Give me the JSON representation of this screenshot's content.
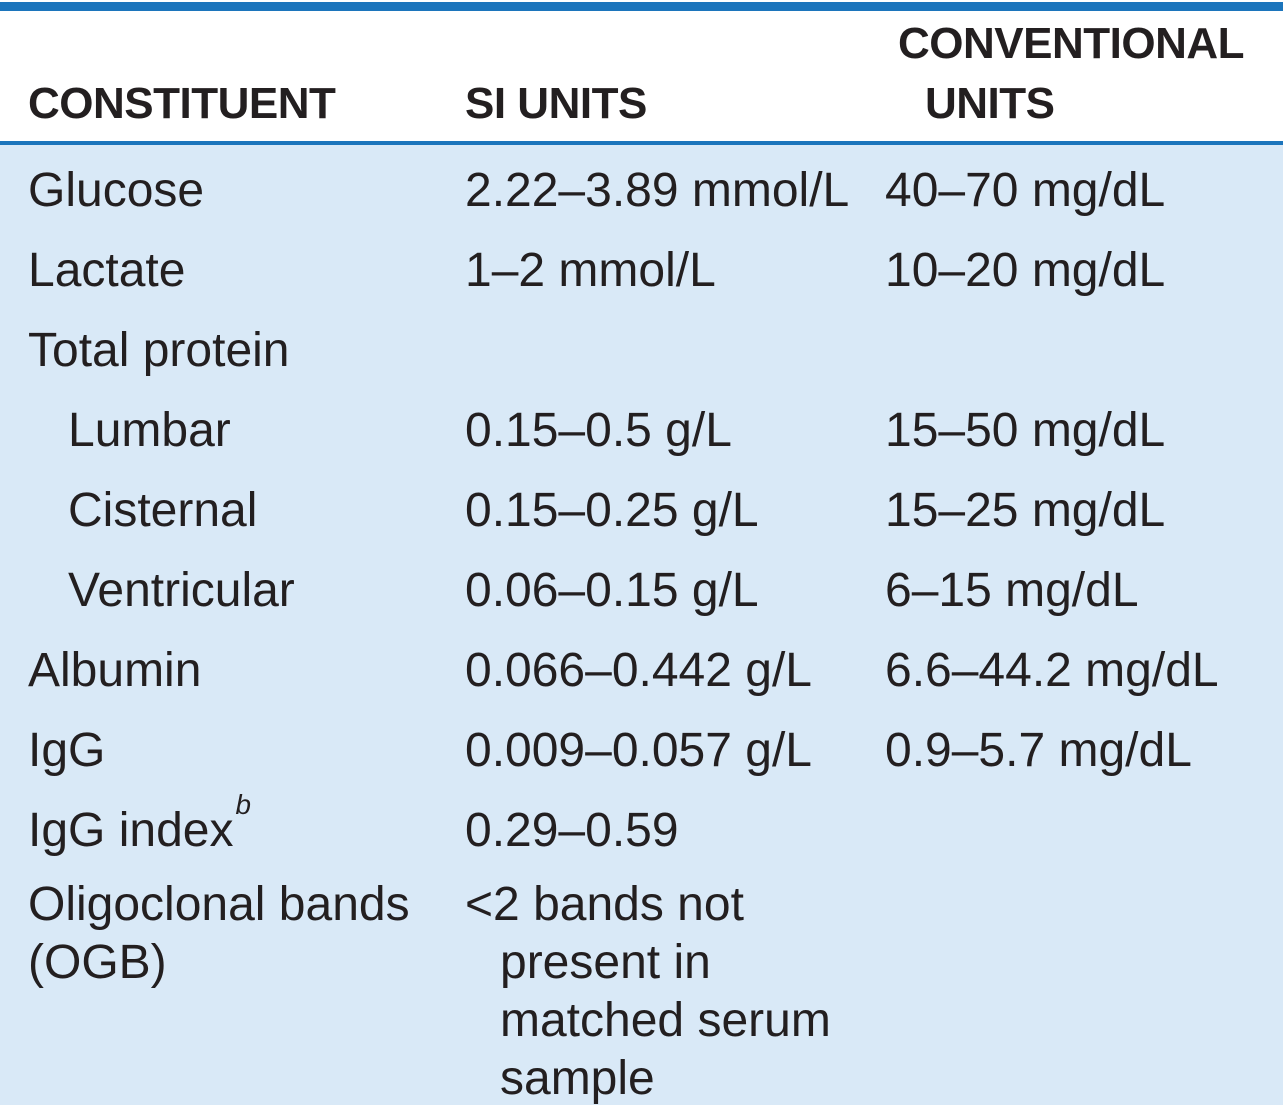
{
  "colors": {
    "accent_blue": "#1c75bc",
    "body_background": "#d9e9f7",
    "header_background": "#ffffff",
    "text": "#231f20"
  },
  "table": {
    "header": {
      "constituent": "CONSTITUENT",
      "si_units": "SI UNITS",
      "conventional_line1": "CONVENTIONAL",
      "conventional_line2": "UNITS"
    },
    "rows": [
      {
        "constituent": "Glucose",
        "si": "2.22–3.89 mmol/L",
        "conventional": "40–70 mg/dL"
      },
      {
        "constituent": "Lactate",
        "si": "1–2 mmol/L",
        "conventional": "10–20 mg/dL"
      },
      {
        "constituent": "Total protein",
        "si": "",
        "conventional": ""
      },
      {
        "constituent": "Lumbar",
        "indent": true,
        "si": "0.15–0.5 g/L",
        "conventional": "15–50 mg/dL"
      },
      {
        "constituent": "Cisternal",
        "indent": true,
        "si": "0.15–0.25 g/L",
        "conventional": "15–25 mg/dL"
      },
      {
        "constituent": "Ventricular",
        "indent": true,
        "si": "0.06–0.15 g/L",
        "conventional": "6–15 mg/dL"
      },
      {
        "constituent": "Albumin",
        "si": "0.066–0.442 g/L",
        "conventional": "6.6–44.2 mg/dL"
      },
      {
        "constituent": "IgG",
        "si": "0.009–0.057 g/L",
        "conventional": "0.9–5.7 mg/dL"
      },
      {
        "constituent": "IgG index",
        "sup": "b",
        "si": "0.29–0.59",
        "conventional": ""
      },
      {
        "constituent": [
          "Oligoclonal bands",
          "(OGB)"
        ],
        "multiline": true,
        "si": [
          "<2 bands not",
          "present in",
          "matched serum",
          "sample"
        ],
        "conventional": ""
      }
    ]
  },
  "chart_data": {
    "type": "table",
    "columns": [
      "CONSTITUENT",
      "SI UNITS",
      "CONVENTIONAL UNITS"
    ],
    "rows": [
      [
        "Glucose",
        "2.22–3.89 mmol/L",
        "40–70 mg/dL"
      ],
      [
        "Lactate",
        "1–2 mmol/L",
        "10–20 mg/dL"
      ],
      [
        "Total protein",
        "",
        ""
      ],
      [
        "Lumbar",
        "0.15–0.5 g/L",
        "15–50 mg/dL"
      ],
      [
        "Cisternal",
        "0.15–0.25 g/L",
        "15–25 mg/dL"
      ],
      [
        "Ventricular",
        "0.06–0.15 g/L",
        "6–15 mg/dL"
      ],
      [
        "Albumin",
        "0.066–0.442 g/L",
        "6.6–44.2 mg/dL"
      ],
      [
        "IgG",
        "0.009–0.057 g/L",
        "0.9–5.7 mg/dL"
      ],
      [
        "IgG index (b)",
        "0.29–0.59",
        ""
      ],
      [
        "Oligoclonal bands (OGB)",
        "<2 bands not present in matched serum sample",
        ""
      ]
    ]
  }
}
